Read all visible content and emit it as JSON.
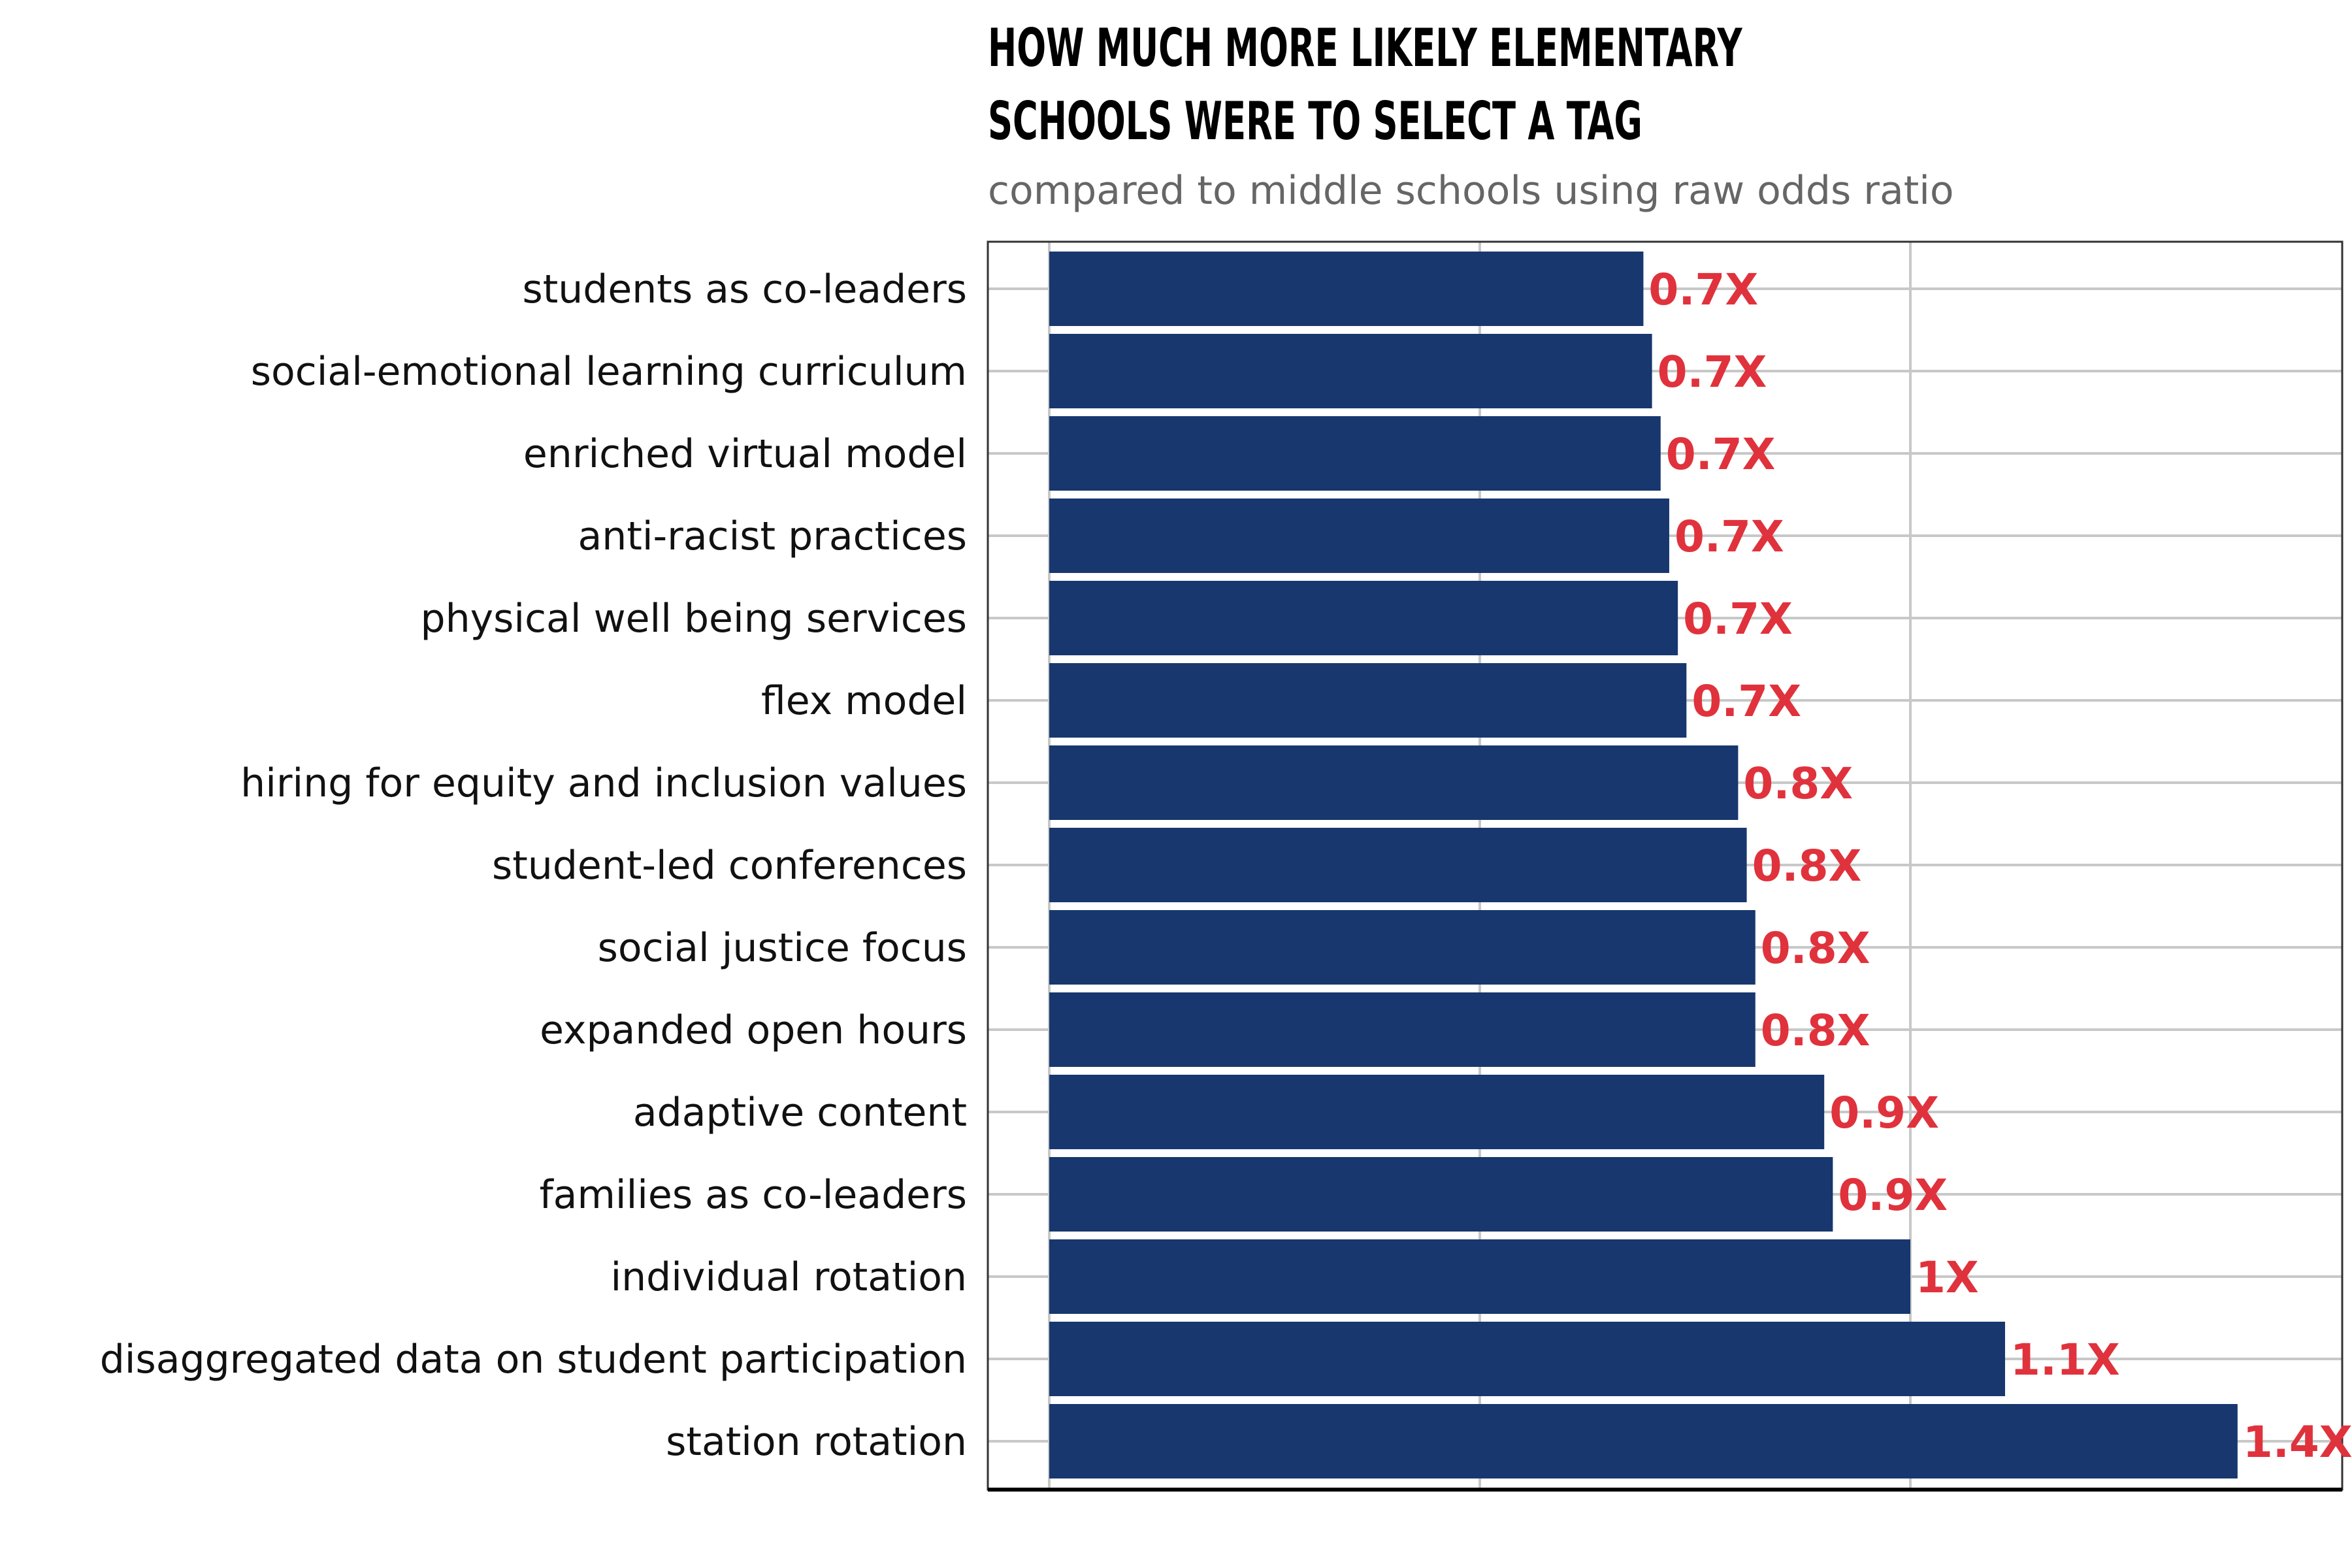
{
  "chart_data": {
    "type": "bar",
    "orientation": "horizontal",
    "title": "HOW MUCH MORE LIKELY ELEMENTARY SCHOOLS WERE TO SELECT A TAG",
    "subtitle": "compared to middle schools using raw odds ratio",
    "xlabel": "",
    "ylabel": "",
    "xlim": [
      0,
      1.5
    ],
    "grid": true,
    "categories": [
      "students as co-leaders",
      "social-emotional learning curriculum",
      "enriched virtual model",
      "anti-racist practices",
      "physical well being services",
      "flex model",
      "hiring for equity and inclusion values",
      "student-led conferences",
      "social justice focus",
      "expanded open hours",
      "adaptive content",
      "families as co-leaders",
      "individual rotation",
      "disaggregated data on student participation",
      "station rotation"
    ],
    "values": [
      0.69,
      0.7,
      0.71,
      0.72,
      0.73,
      0.74,
      0.8,
      0.81,
      0.82,
      0.82,
      0.9,
      0.91,
      1.0,
      1.11,
      1.38
    ],
    "data_labels": [
      "0.7X",
      "0.7X",
      "0.7X",
      "0.7X",
      "0.7X",
      "0.7X",
      "0.8X",
      "0.8X",
      "0.8X",
      "0.8X",
      "0.9X",
      "0.9X",
      "1X",
      "1.1X",
      "1.4X"
    ],
    "colors": {
      "bar": "#17376e",
      "label": "#e0323c",
      "grid": "#c8c8c8",
      "axis": "#000000",
      "panel_border": "#333333"
    }
  }
}
